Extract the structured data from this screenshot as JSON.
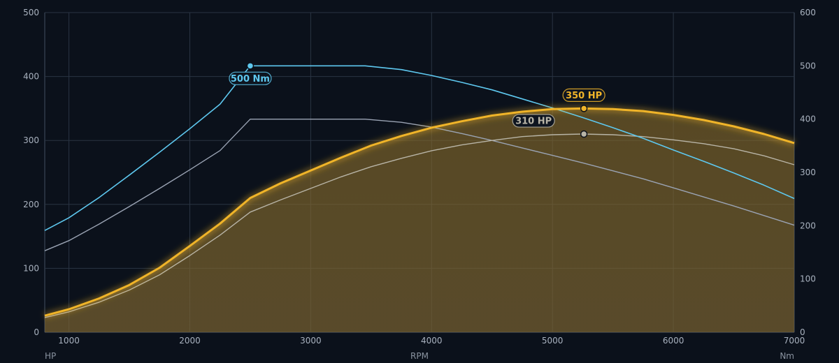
{
  "chart_data": {
    "type": "line",
    "x_axis": {
      "label": "RPM",
      "range": [
        800,
        7000
      ],
      "ticks": [
        1000,
        2000,
        3000,
        4000,
        5000,
        6000,
        7000
      ]
    },
    "y_left": {
      "label": "HP",
      "range": [
        0,
        500
      ],
      "ticks": [
        0,
        100,
        200,
        300,
        400,
        500
      ]
    },
    "y_right": {
      "label": "Nm",
      "range": [
        0,
        600
      ],
      "ticks": [
        0,
        100,
        200,
        300,
        400,
        500,
        600
      ]
    },
    "grid": true,
    "series": [
      {
        "key": "hp_tuned",
        "axis": "left",
        "color": "#f0b429",
        "filled": true,
        "x": [
          800,
          1000,
          1250,
          1500,
          1750,
          2000,
          2250,
          2500,
          2750,
          3000,
          3250,
          3500,
          3750,
          4000,
          4250,
          4500,
          4750,
          5000,
          5250,
          5500,
          5750,
          6000,
          6250,
          6500,
          6750,
          7000
        ],
        "y": [
          26,
          36,
          53,
          74,
          101,
          135,
          170,
          210,
          233,
          253,
          273,
          292,
          307,
          320,
          330,
          339,
          345,
          349,
          350,
          349,
          346,
          340,
          332,
          322,
          310,
          296
        ]
      },
      {
        "key": "hp_stock",
        "axis": "left",
        "color": "#b8b4a6",
        "filled": false,
        "x": [
          800,
          1000,
          1250,
          1500,
          1750,
          2000,
          2250,
          2500,
          2750,
          3000,
          3250,
          3500,
          3750,
          4000,
          4250,
          4500,
          4750,
          5000,
          5250,
          5500,
          5750,
          6000,
          6250,
          6500,
          6750,
          7000
        ],
        "y": [
          23,
          32,
          47,
          66,
          90,
          120,
          152,
          188,
          207,
          225,
          243,
          259,
          272,
          284,
          293,
          300,
          306,
          309,
          310,
          309,
          306,
          301,
          295,
          287,
          276,
          262
        ]
      },
      {
        "key": "torque_tuned",
        "axis": "right",
        "color": "#5ec8ef",
        "filled": false,
        "x": [
          800,
          1000,
          1250,
          1500,
          1750,
          2000,
          2250,
          2500,
          2750,
          3000,
          3250,
          3450,
          3750,
          4000,
          4250,
          4500,
          4750,
          5000,
          5250,
          5500,
          5750,
          6000,
          6250,
          6500,
          6750,
          7000
        ],
        "y": [
          191,
          215,
          253,
          295,
          338,
          382,
          428,
          500,
          500,
          500,
          500,
          500,
          493,
          482,
          469,
          455,
          438,
          421,
          403,
          384,
          364,
          342,
          321,
          299,
          276,
          251
        ]
      },
      {
        "key": "torque_stock",
        "axis": "right",
        "color": "#9aa3b3",
        "filled": false,
        "x": [
          800,
          1000,
          1250,
          1500,
          1750,
          2000,
          2250,
          2500,
          2750,
          3000,
          3250,
          3450,
          3750,
          4000,
          4250,
          4500,
          4750,
          5000,
          5250,
          5500,
          5750,
          6000,
          6250,
          6500,
          6750,
          7000
        ],
        "y": [
          153,
          172,
          203,
          236,
          270,
          305,
          341,
          400,
          400,
          400,
          400,
          400,
          394,
          385,
          373,
          360,
          346,
          332,
          318,
          303,
          288,
          271,
          254,
          237,
          219,
          201
        ]
      }
    ],
    "annotations": [
      {
        "series": "torque_tuned",
        "x": 2500,
        "y": 500,
        "text": "500 Nm"
      },
      {
        "series": "hp_tuned",
        "x": 5260,
        "y": 350,
        "text": "350 HP"
      },
      {
        "series": "hp_stock",
        "x": 5260,
        "y": 310,
        "text": "310 HP"
      }
    ]
  }
}
